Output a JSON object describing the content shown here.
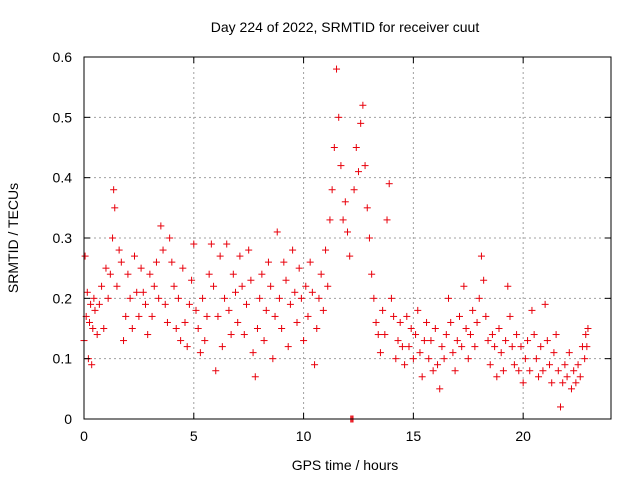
{
  "chart_data": {
    "type": "scatter",
    "title": "Day 224 of 2022, SRMTID for receiver cuut",
    "xlabel": "GPS time / hours",
    "ylabel": "SRMTID / TECUs",
    "xlim": [
      0,
      24
    ],
    "ylim": [
      0,
      0.6
    ],
    "x_ticks": [
      0,
      5,
      10,
      15,
      20
    ],
    "y_ticks": [
      0,
      0.1,
      0.2,
      0.3,
      0.4,
      0.5,
      0.6
    ],
    "x_tick_labels": [
      "0",
      "5",
      "10",
      "15",
      "20"
    ],
    "y_tick_labels": [
      "0",
      "0.1",
      "0.2",
      "0.3",
      "0.4",
      "0.5",
      "0.6"
    ],
    "grid": true,
    "marker": "+",
    "color": "#e8000b",
    "series": [
      {
        "name": "SRMTID",
        "points": [
          [
            0.0,
            0.13
          ],
          [
            0.05,
            0.27
          ],
          [
            0.1,
            0.17
          ],
          [
            0.15,
            0.21
          ],
          [
            0.2,
            0.1
          ],
          [
            0.25,
            0.16
          ],
          [
            0.3,
            0.19
          ],
          [
            0.35,
            0.09
          ],
          [
            0.4,
            0.15
          ],
          [
            0.45,
            0.2
          ],
          [
            0.5,
            0.18
          ],
          [
            0.6,
            0.14
          ],
          [
            0.7,
            0.19
          ],
          [
            0.8,
            0.22
          ],
          [
            0.9,
            0.15
          ],
          [
            1.0,
            0.25
          ],
          [
            1.1,
            0.2
          ],
          [
            1.2,
            0.24
          ],
          [
            1.3,
            0.3
          ],
          [
            1.35,
            0.38
          ],
          [
            1.4,
            0.35
          ],
          [
            1.5,
            0.22
          ],
          [
            1.6,
            0.28
          ],
          [
            1.7,
            0.26
          ],
          [
            1.8,
            0.13
          ],
          [
            1.9,
            0.17
          ],
          [
            2.0,
            0.24
          ],
          [
            2.1,
            0.2
          ],
          [
            2.2,
            0.15
          ],
          [
            2.3,
            0.27
          ],
          [
            2.4,
            0.21
          ],
          [
            2.5,
            0.17
          ],
          [
            2.6,
            0.25
          ],
          [
            2.7,
            0.21
          ],
          [
            2.8,
            0.19
          ],
          [
            2.9,
            0.14
          ],
          [
            3.0,
            0.24
          ],
          [
            3.1,
            0.17
          ],
          [
            3.2,
            0.22
          ],
          [
            3.3,
            0.26
          ],
          [
            3.4,
            0.2
          ],
          [
            3.5,
            0.32
          ],
          [
            3.6,
            0.28
          ],
          [
            3.7,
            0.19
          ],
          [
            3.8,
            0.16
          ],
          [
            3.9,
            0.3
          ],
          [
            4.0,
            0.26
          ],
          [
            4.1,
            0.22
          ],
          [
            4.2,
            0.15
          ],
          [
            4.3,
            0.2
          ],
          [
            4.4,
            0.13
          ],
          [
            4.5,
            0.25
          ],
          [
            4.6,
            0.16
          ],
          [
            4.7,
            0.12
          ],
          [
            4.8,
            0.19
          ],
          [
            4.9,
            0.23
          ],
          [
            5.0,
            0.29
          ],
          [
            5.1,
            0.18
          ],
          [
            5.2,
            0.15
          ],
          [
            5.3,
            0.11
          ],
          [
            5.4,
            0.2
          ],
          [
            5.5,
            0.13
          ],
          [
            5.6,
            0.17
          ],
          [
            5.7,
            0.24
          ],
          [
            5.8,
            0.29
          ],
          [
            5.9,
            0.22
          ],
          [
            6.0,
            0.08
          ],
          [
            6.1,
            0.17
          ],
          [
            6.2,
            0.27
          ],
          [
            6.3,
            0.12
          ],
          [
            6.4,
            0.2
          ],
          [
            6.5,
            0.29
          ],
          [
            6.6,
            0.18
          ],
          [
            6.7,
            0.14
          ],
          [
            6.8,
            0.24
          ],
          [
            6.9,
            0.21
          ],
          [
            7.0,
            0.16
          ],
          [
            7.1,
            0.27
          ],
          [
            7.2,
            0.22
          ],
          [
            7.3,
            0.14
          ],
          [
            7.4,
            0.19
          ],
          [
            7.5,
            0.28
          ],
          [
            7.6,
            0.23
          ],
          [
            7.7,
            0.11
          ],
          [
            7.8,
            0.07
          ],
          [
            7.9,
            0.15
          ],
          [
            8.0,
            0.2
          ],
          [
            8.1,
            0.24
          ],
          [
            8.2,
            0.13
          ],
          [
            8.3,
            0.18
          ],
          [
            8.4,
            0.26
          ],
          [
            8.5,
            0.22
          ],
          [
            8.6,
            0.1
          ],
          [
            8.7,
            0.17
          ],
          [
            8.8,
            0.31
          ],
          [
            8.9,
            0.2
          ],
          [
            9.0,
            0.15
          ],
          [
            9.1,
            0.26
          ],
          [
            9.2,
            0.23
          ],
          [
            9.3,
            0.12
          ],
          [
            9.4,
            0.19
          ],
          [
            9.5,
            0.28
          ],
          [
            9.6,
            0.21
          ],
          [
            9.7,
            0.16
          ],
          [
            9.8,
            0.25
          ],
          [
            9.9,
            0.2
          ],
          [
            10.0,
            0.13
          ],
          [
            10.1,
            0.22
          ],
          [
            10.2,
            0.17
          ],
          [
            10.3,
            0.26
          ],
          [
            10.4,
            0.21
          ],
          [
            10.5,
            0.09
          ],
          [
            10.6,
            0.15
          ],
          [
            10.7,
            0.2
          ],
          [
            10.8,
            0.24
          ],
          [
            10.9,
            0.18
          ],
          [
            11.0,
            0.28
          ],
          [
            11.1,
            0.22
          ],
          [
            11.2,
            0.33
          ],
          [
            11.3,
            0.38
          ],
          [
            11.4,
            0.45
          ],
          [
            11.5,
            0.58
          ],
          [
            11.6,
            0.5
          ],
          [
            11.7,
            0.42
          ],
          [
            11.8,
            0.33
          ],
          [
            11.9,
            0.36
          ],
          [
            12.0,
            0.31
          ],
          [
            12.1,
            0.27
          ],
          [
            12.3,
            0.38
          ],
          [
            12.4,
            0.45
          ],
          [
            12.5,
            0.41
          ],
          [
            12.6,
            0.49
          ],
          [
            12.7,
            0.52
          ],
          [
            12.8,
            0.42
          ],
          [
            12.9,
            0.35
          ],
          [
            13.0,
            0.3
          ],
          [
            13.1,
            0.24
          ],
          [
            13.2,
            0.2
          ],
          [
            13.3,
            0.16
          ],
          [
            13.4,
            0.14
          ],
          [
            13.5,
            0.11
          ],
          [
            13.6,
            0.18
          ],
          [
            13.7,
            0.14
          ],
          [
            13.8,
            0.33
          ],
          [
            13.9,
            0.39
          ],
          [
            14.0,
            0.2
          ],
          [
            14.1,
            0.17
          ],
          [
            14.2,
            0.1
          ],
          [
            14.3,
            0.13
          ],
          [
            14.4,
            0.16
          ],
          [
            14.5,
            0.12
          ],
          [
            14.6,
            0.09
          ],
          [
            14.7,
            0.17
          ],
          [
            14.8,
            0.12
          ],
          [
            14.9,
            0.15
          ],
          [
            15.0,
            0.1
          ],
          [
            15.1,
            0.14
          ],
          [
            15.2,
            0.18
          ],
          [
            15.3,
            0.11
          ],
          [
            15.4,
            0.07
          ],
          [
            15.5,
            0.13
          ],
          [
            15.6,
            0.16
          ],
          [
            15.7,
            0.1
          ],
          [
            15.8,
            0.13
          ],
          [
            15.9,
            0.08
          ],
          [
            16.0,
            0.15
          ],
          [
            16.1,
            0.09
          ],
          [
            16.2,
            0.05
          ],
          [
            16.3,
            0.12
          ],
          [
            16.4,
            0.1
          ],
          [
            16.5,
            0.14
          ],
          [
            16.6,
            0.2
          ],
          [
            16.7,
            0.16
          ],
          [
            16.8,
            0.11
          ],
          [
            16.9,
            0.08
          ],
          [
            17.0,
            0.13
          ],
          [
            17.1,
            0.17
          ],
          [
            17.2,
            0.12
          ],
          [
            17.3,
            0.22
          ],
          [
            17.4,
            0.15
          ],
          [
            17.5,
            0.1
          ],
          [
            17.6,
            0.14
          ],
          [
            17.7,
            0.18
          ],
          [
            17.8,
            0.12
          ],
          [
            17.9,
            0.16
          ],
          [
            18.0,
            0.2
          ],
          [
            18.1,
            0.27
          ],
          [
            18.2,
            0.23
          ],
          [
            18.3,
            0.17
          ],
          [
            18.4,
            0.13
          ],
          [
            18.5,
            0.09
          ],
          [
            18.6,
            0.14
          ],
          [
            18.7,
            0.12
          ],
          [
            18.8,
            0.07
          ],
          [
            18.9,
            0.15
          ],
          [
            19.0,
            0.11
          ],
          [
            19.1,
            0.08
          ],
          [
            19.2,
            0.13
          ],
          [
            19.3,
            0.22
          ],
          [
            19.4,
            0.17
          ],
          [
            19.5,
            0.12
          ],
          [
            19.6,
            0.09
          ],
          [
            19.7,
            0.14
          ],
          [
            19.8,
            0.08
          ],
          [
            19.9,
            0.12
          ],
          [
            20.0,
            0.06
          ],
          [
            20.1,
            0.1
          ],
          [
            20.2,
            0.13
          ],
          [
            20.3,
            0.08
          ],
          [
            20.4,
            0.18
          ],
          [
            20.5,
            0.14
          ],
          [
            20.6,
            0.1
          ],
          [
            20.7,
            0.07
          ],
          [
            20.8,
            0.12
          ],
          [
            20.9,
            0.08
          ],
          [
            21.0,
            0.19
          ],
          [
            21.1,
            0.13
          ],
          [
            21.2,
            0.09
          ],
          [
            21.3,
            0.06
          ],
          [
            21.4,
            0.11
          ],
          [
            21.5,
            0.14
          ],
          [
            21.6,
            0.08
          ],
          [
            21.7,
            0.02
          ],
          [
            21.8,
            0.06
          ],
          [
            21.9,
            0.09
          ],
          [
            22.0,
            0.07
          ],
          [
            22.1,
            0.11
          ],
          [
            22.2,
            0.05
          ],
          [
            22.3,
            0.08
          ],
          [
            22.4,
            0.06
          ],
          [
            22.5,
            0.09
          ],
          [
            22.6,
            0.07
          ],
          [
            22.7,
            0.12
          ],
          [
            22.8,
            0.1
          ],
          [
            22.85,
            0.14
          ],
          [
            22.9,
            0.12
          ],
          [
            22.95,
            0.15
          ],
          [
            12.15,
            0.0
          ],
          [
            12.2,
            0.0
          ],
          [
            12.25,
            0.0
          ]
        ]
      }
    ]
  }
}
